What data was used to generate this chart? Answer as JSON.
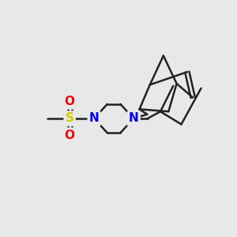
{
  "bg_color": "#e8e8e8",
  "bond_color": "#222222",
  "N_color": "#0000ee",
  "S_color": "#cccc00",
  "O_color": "#ff0000",
  "line_width": 1.8,
  "font_size_atom": 11,
  "figsize": [
    3.0,
    3.0
  ],
  "dpi": 100,
  "xlim": [
    0,
    10
  ],
  "ylim": [
    0,
    10
  ]
}
